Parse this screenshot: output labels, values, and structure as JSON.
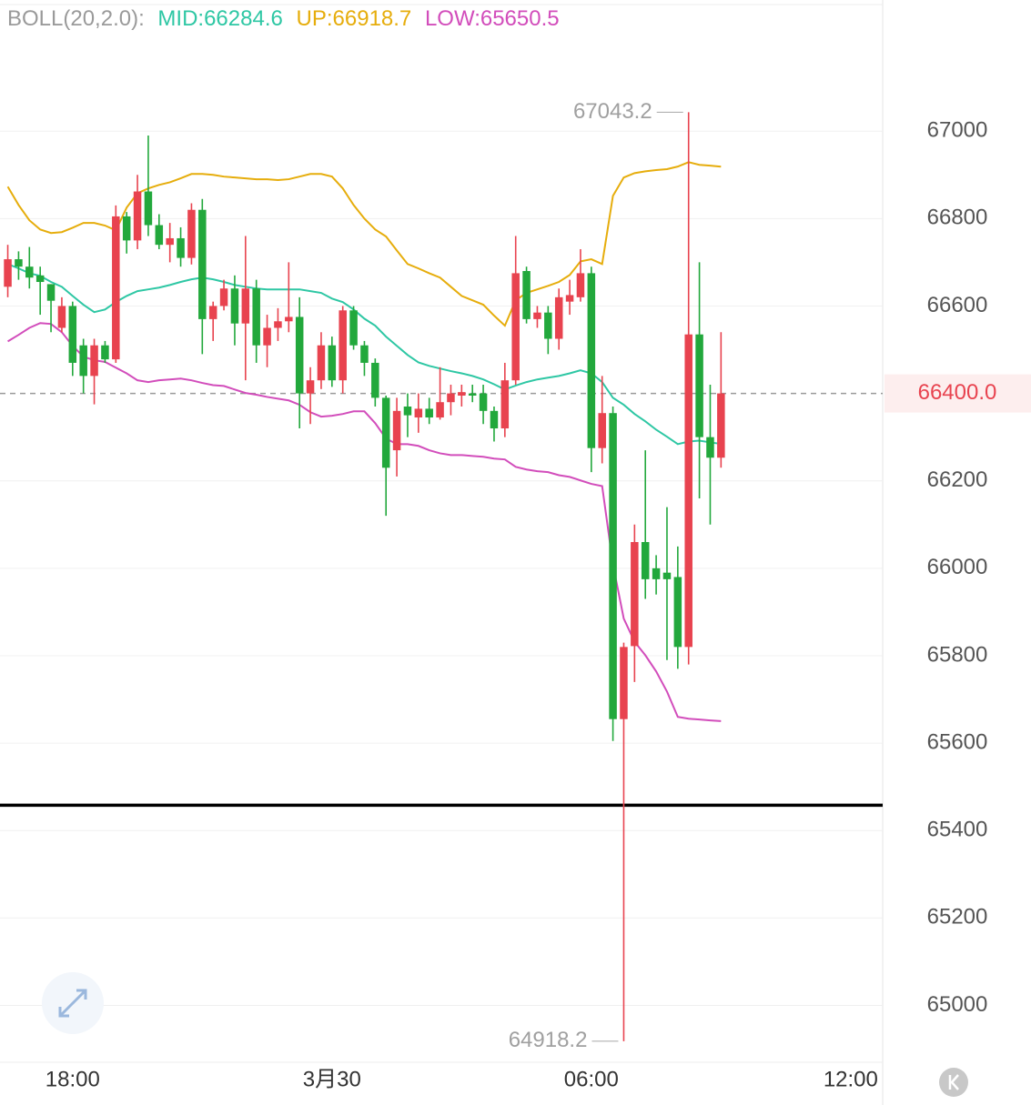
{
  "chart_data": {
    "type": "candlestick",
    "indicator_label": "BOLL(20,2.0):",
    "x": [
      16.5,
      16.75,
      17,
      17.25,
      17.5,
      17.75,
      18,
      18.25,
      18.5,
      18.75,
      19,
      19.25,
      19.5,
      19.75,
      20,
      20.25,
      20.5,
      20.75,
      21,
      21.25,
      21.5,
      21.75,
      22,
      22.25,
      22.5,
      22.75,
      23,
      23.25,
      23.5,
      23.75,
      24,
      24.25,
      24.5,
      24.75,
      25,
      25.25,
      25.5,
      25.75,
      26,
      26.25,
      26.5,
      26.75,
      27,
      27.25,
      27.5,
      27.75,
      28,
      28.25,
      28.5,
      28.75,
      29,
      29.25,
      29.5,
      29.75,
      30,
      30.25,
      30.5,
      30.75,
      31,
      31.25,
      31.5,
      31.75,
      32,
      32.25,
      32.5,
      32.75,
      33
    ],
    "open": [
      66644,
      66707,
      66690,
      66670,
      66650,
      66550,
      66600,
      66510,
      66440,
      66510,
      66478,
      66805,
      66750,
      66862,
      66785,
      66740,
      66755,
      66710,
      66820,
      66570,
      66600,
      66640,
      66560,
      66640,
      66510,
      66550,
      66565,
      66575,
      66400,
      66430,
      66510,
      66430,
      66590,
      66510,
      66470,
      66390,
      66270,
      66370,
      66345,
      66365,
      66345,
      66380,
      66395,
      66400,
      66400,
      66360,
      66320,
      66430,
      66680,
      66570,
      66585,
      66525,
      66610,
      66620,
      66675,
      66275,
      66355,
      65655,
      65822,
      66060,
      66000,
      65990,
      65980,
      65820,
      66535,
      66300,
      66253
    ],
    "high": [
      66740,
      66725,
      66735,
      66690,
      66650,
      66620,
      66610,
      66525,
      66525,
      66520,
      66830,
      66815,
      66900,
      66990,
      66810,
      66790,
      66780,
      66835,
      66845,
      66610,
      66660,
      66670,
      66760,
      66660,
      66580,
      66595,
      66700,
      66620,
      66460,
      66540,
      66530,
      66600,
      66600,
      66520,
      66480,
      66395,
      66390,
      66400,
      66400,
      66390,
      66460,
      66420,
      66420,
      66420,
      66420,
      66370,
      66470,
      66760,
      66690,
      66600,
      66600,
      66640,
      66660,
      66730,
      66690,
      66440,
      66370,
      65830,
      66100,
      66270,
      66030,
      66140,
      66050,
      67043.2,
      66700,
      66420,
      66540
    ],
    "low": [
      66620,
      66660,
      66640,
      66580,
      66540,
      66540,
      66440,
      66400,
      66375,
      66470,
      66470,
      66720,
      66730,
      66760,
      66730,
      66700,
      66690,
      66695,
      66490,
      66520,
      66590,
      66510,
      66430,
      66470,
      66460,
      66520,
      66540,
      66320,
      66330,
      66410,
      66415,
      66400,
      66500,
      66440,
      66370,
      66120,
      66210,
      66300,
      66310,
      66330,
      66340,
      66350,
      66370,
      66380,
      66330,
      66290,
      66300,
      66420,
      66560,
      66550,
      66490,
      66500,
      66580,
      66610,
      66220,
      66240,
      65605,
      64918.2,
      65740,
      65930,
      65940,
      65790,
      65770,
      65780,
      66160,
      66100,
      66230
    ],
    "close": [
      66707,
      66690,
      66665,
      66655,
      66612,
      66600,
      66470,
      66440,
      66510,
      66478,
      66805,
      66750,
      66862,
      66785,
      66740,
      66755,
      66710,
      66820,
      66570,
      66600,
      66640,
      66560,
      66640,
      66510,
      66550,
      66565,
      66575,
      66400,
      66430,
      66510,
      66430,
      66590,
      66510,
      66470,
      66390,
      66230,
      66360,
      66350,
      66365,
      66345,
      66380,
      66400,
      66403,
      66395,
      66360,
      66320,
      66430,
      66675,
      66570,
      66585,
      66525,
      66620,
      66625,
      66675,
      66275,
      66355,
      65655,
      65820,
      66060,
      65975,
      65975,
      65975,
      65820,
      66535,
      66300,
      66253,
      66400
    ],
    "up_color": "#e8434f",
    "down_color": "#22a83c",
    "series": [
      {
        "name": "MID:66284.6",
        "color": "#2ec7a4",
        "values": [
          66696,
          66686,
          66675,
          66669,
          66655,
          66644,
          66623,
          66603,
          66586,
          66592,
          66609,
          66623,
          66634,
          66638,
          66642,
          66648,
          66655,
          66661,
          66665,
          66661,
          66655,
          66648,
          66644,
          66640,
          66638,
          66638,
          66638,
          66638,
          66634,
          66630,
          66617,
          66609,
          66592,
          66571,
          66555,
          66530,
          66509,
          66488,
          66471,
          66463,
          66457,
          66451,
          66446,
          66440,
          66432,
          66421,
          66409,
          66418,
          66426,
          66432,
          66436,
          66440,
          66446,
          66453,
          66446,
          66426,
          66390,
          66374,
          66353,
          66336,
          66317,
          66301,
          66284,
          66290,
          66292,
          66288,
          66284.6
        ]
      },
      {
        "name": "UP:66918.7",
        "color": "#e6ad0c",
        "values": [
          66873,
          66831,
          66796,
          66775,
          66767,
          66769,
          66779,
          66790,
          66790,
          66784,
          66773,
          66825,
          66858,
          66869,
          66877,
          66883,
          66892,
          66902,
          66902,
          66900,
          66896,
          66894,
          66892,
          66890,
          66890,
          66888,
          66890,
          66896,
          66902,
          66902,
          66896,
          66869,
          66831,
          66800,
          66775,
          66759,
          66727,
          66696,
          66686,
          66675,
          66665,
          66644,
          66623,
          66613,
          66603,
          66578,
          66555,
          66613,
          66630,
          66638,
          66646,
          66655,
          66671,
          66702,
          66707,
          66696,
          66852,
          66894,
          66904,
          66908,
          66911,
          66913,
          66919,
          66929,
          66923,
          66921,
          66918.7
        ]
      },
      {
        "name": "LOW:65650.5",
        "color": "#d24dbb",
        "values": [
          66519,
          66534,
          66550,
          66561,
          66559,
          66540,
          66509,
          66484,
          66476,
          66472,
          66459,
          66446,
          66430,
          66426,
          66430,
          66432,
          66434,
          66430,
          66424,
          66419,
          66417,
          66409,
          66401,
          66397,
          66392,
          66388,
          66384,
          66374,
          66357,
          66347,
          66349,
          66353,
          66359,
          66359,
          66332,
          66297,
          66284,
          66284,
          66280,
          66270,
          66263,
          66259,
          66259,
          66257,
          66255,
          66251,
          66249,
          66232,
          66226,
          66222,
          66220,
          66213,
          66209,
          66201,
          66193,
          66188,
          66009,
          65885,
          65832,
          65801,
          65764,
          65718,
          65660,
          65656,
          65654,
          65652,
          65650.5
        ]
      }
    ],
    "xlim": [
      16.32,
      36.74
    ],
    "xticks": [
      {
        "value": 18,
        "label": "18:00"
      },
      {
        "value": 24,
        "label": "3月30"
      },
      {
        "value": 30,
        "label": "06:00"
      },
      {
        "value": 36,
        "label": "12:00"
      }
    ],
    "ylim": [
      64870,
      67300
    ],
    "yticks": [
      65000,
      65200,
      65400,
      65600,
      65800,
      66000,
      66200,
      66600,
      66800,
      67000
    ],
    "grid": true,
    "max_label": 67043.2,
    "min_label": 64918.2,
    "last_price": {
      "value": 66400,
      "label": "66400.0"
    },
    "horizontal_line": 65458
  }
}
